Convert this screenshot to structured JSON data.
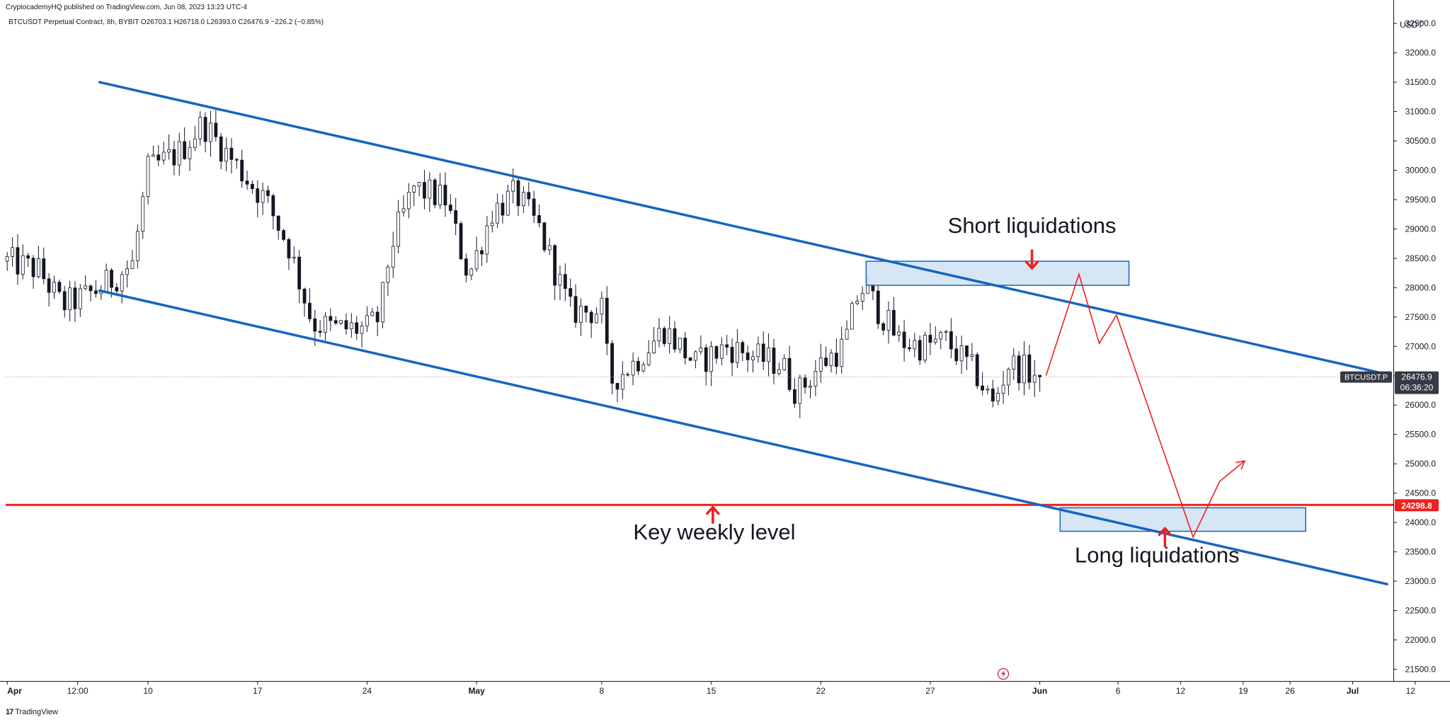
{
  "header": {
    "published_text": "CryptocademyHQ published on TradingView.com, Jun 08, 2023 13:23 UTC-4",
    "symbol_line": "BTCUSDT Perpetual Contract, 8h, BYBIT  O26703.1  H26718.0  L26393.0  C26476.9  −226.2 (−0.85%)"
  },
  "footer": {
    "logo_text": "TradingView",
    "logo_icon": "tradingview-logo-icon"
  },
  "colors": {
    "up": "#131722",
    "down": "#131722",
    "channel": "#1565c0",
    "key_level": "#f01e1e",
    "projection": "#f01e1e",
    "zone_fill": "#cfe2f3",
    "zone_border": "#1565c0",
    "price_tag_bg": "#363a45",
    "key_tag_bg": "#f01e1e"
  },
  "chart_data": {
    "type": "candlestick",
    "title": "BTCUSDT Perpetual Contract, 8h, BYBIT",
    "y_axis": {
      "unit": "USDT",
      "range": [
        21300,
        32900
      ],
      "ticks": [
        21500,
        22000,
        22500,
        23000,
        23500,
        24000,
        24500,
        25000,
        25500,
        26000,
        26500,
        27000,
        27500,
        28000,
        28500,
        29000,
        29500,
        30000,
        30500,
        31000,
        31500,
        32000,
        32500
      ],
      "tick_labels": [
        "21500.0",
        "22000.0",
        "22500.0",
        "23000.0",
        "23500.0",
        "24000.0",
        "24500.0",
        "25000.0",
        "25500.0",
        "26000.0",
        "26500.0",
        "27000.0",
        "27500.0",
        "28000.0",
        "28500.0",
        "29000.0",
        "29500.0",
        "30000.0",
        "30500.0",
        "31000.0",
        "31500.0",
        "32000.0",
        "32500.0"
      ]
    },
    "x_axis": {
      "range_days": [
        -0.1,
        88.6
      ],
      "tick_days": [
        0,
        4.5,
        9,
        16,
        23,
        30,
        38,
        45,
        52,
        59,
        66,
        71,
        75,
        79,
        82,
        86,
        90
      ],
      "tick_labels": [
        "Apr",
        "12:00",
        "10",
        "17",
        "24",
        "May",
        "8",
        "15",
        "22",
        "27",
        "Jun",
        "6",
        "12",
        "19",
        "26",
        "Jul",
        "12"
      ],
      "tick_bold": [
        true,
        false,
        false,
        false,
        false,
        true,
        false,
        false,
        false,
        false,
        true,
        false,
        false,
        false,
        false,
        true,
        false
      ]
    },
    "last_price": {
      "value": 26476.9,
      "label": "BTCUSDT.P",
      "value_text": "26476.9",
      "countdown": "06:36:20"
    },
    "key_level": {
      "value": 24298.8,
      "value_text": "24298.8"
    },
    "candle_anchors": [
      [
        0,
        28450
      ],
      [
        2,
        28300
      ],
      [
        3.5,
        27700
      ],
      [
        5,
        27850
      ],
      [
        6,
        28000
      ],
      [
        8,
        28400
      ],
      [
        9,
        30000
      ],
      [
        11,
        30300
      ],
      [
        12.5,
        30800
      ],
      [
        14,
        30300
      ],
      [
        15.5,
        29800
      ],
      [
        16.5,
        29500
      ],
      [
        18,
        28700
      ],
      [
        19.5,
        27400
      ],
      [
        21,
        27300
      ],
      [
        23,
        27300
      ],
      [
        23.8,
        27500
      ],
      [
        24.5,
        28700
      ],
      [
        26,
        29700
      ],
      [
        28,
        29500
      ],
      [
        29.5,
        28200
      ],
      [
        31,
        29300
      ],
      [
        32.5,
        29600
      ],
      [
        34,
        29000
      ],
      [
        36,
        27600
      ],
      [
        38,
        27600
      ],
      [
        38.5,
        26400
      ],
      [
        40,
        26700
      ],
      [
        42,
        27300
      ],
      [
        44,
        26700
      ],
      [
        46,
        27000
      ],
      [
        48,
        26800
      ],
      [
        49.5,
        26700
      ],
      [
        50.5,
        26200
      ],
      [
        52,
        26700
      ],
      [
        53.5,
        27000
      ],
      [
        54.5,
        28000
      ],
      [
        55,
        27900
      ],
      [
        56,
        27500
      ],
      [
        57,
        27100
      ],
      [
        58.5,
        27000
      ],
      [
        60,
        27100
      ],
      [
        62,
        26500
      ],
      [
        63,
        26000
      ],
      [
        64,
        26700
      ],
      [
        65,
        26600
      ],
      [
        66,
        26476.9
      ]
    ],
    "channel_lines": [
      {
        "name": "upper",
        "from": [
          5.9,
          31500
        ],
        "to": [
          88.1,
          26530
        ]
      },
      {
        "name": "lower",
        "from": [
          5.9,
          27950
        ],
        "to": [
          88.2,
          22950
        ]
      }
    ],
    "zones": [
      {
        "name": "short-liquidation-zone",
        "x": [
          54.9,
          71.7
        ],
        "y": [
          28040,
          28450
        ]
      },
      {
        "name": "long-liquidation-zone",
        "x": [
          67.3,
          83.0
        ],
        "y": [
          23850,
          24250
        ]
      }
    ],
    "projection_path": [
      [
        66.4,
        26500
      ],
      [
        68.5,
        28230
      ],
      [
        69.8,
        27050
      ],
      [
        70.9,
        27530
      ],
      [
        75.8,
        23750
      ],
      [
        77.5,
        24700
      ],
      [
        79.1,
        25050
      ]
    ],
    "projection_arrow": {
      "from": [
        77.5,
        24700
      ],
      "to": [
        79.1,
        25050
      ]
    },
    "annotations": [
      {
        "name": "short-liquidations-label",
        "text": "Short liquidations",
        "x": 65.5,
        "y": 28930
      },
      {
        "name": "key-weekly-level-label",
        "text": "Key weekly level",
        "x": 45.2,
        "y": 23710
      },
      {
        "name": "long-liquidations-label",
        "text": "Long liquidations",
        "x": 73.5,
        "y": 23320
      }
    ],
    "arrows": [
      {
        "name": "short-liquidations-arrow",
        "direction": "down",
        "x": 65.5,
        "from": 28650,
        "to": 28330
      },
      {
        "name": "key-weekly-level-arrow",
        "direction": "up",
        "x": 45.1,
        "from": 23980,
        "to": 24260
      },
      {
        "name": "long-liquidations-arrow",
        "direction": "up",
        "x": 74.0,
        "from": 23580,
        "to": 23900
      }
    ]
  }
}
